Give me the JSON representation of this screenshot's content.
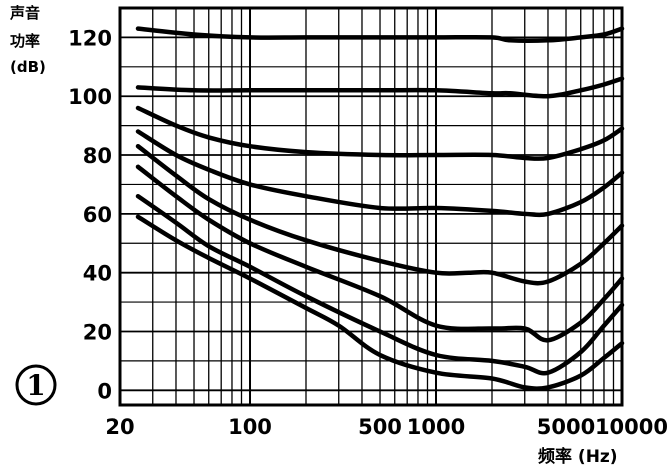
{
  "chart_data": {
    "type": "line",
    "ylabel": [
      "声音",
      "功率",
      "(dB)"
    ],
    "xlabel": "频率 (Hz)",
    "panel_marker": "1",
    "x_scale": "log",
    "xlim": [
      20,
      10000
    ],
    "ylim": [
      -5,
      130
    ],
    "x_ticks": [
      20,
      100,
      500,
      1000,
      5000,
      10000
    ],
    "x_tick_labels": [
      "20",
      "100",
      "500",
      "1000",
      "5000",
      "10000"
    ],
    "y_ticks": [
      0,
      20,
      40,
      60,
      80,
      100,
      120
    ],
    "y_tick_labels": [
      "0",
      "20",
      "40",
      "60",
      "80",
      "100",
      "120"
    ],
    "grid": true,
    "series": [
      {
        "x": [
          25,
          50,
          100,
          200,
          500,
          1000,
          2000,
          2500,
          4000,
          6000,
          8000,
          10000
        ],
        "y": [
          123,
          121,
          120,
          120,
          120,
          120,
          120,
          119,
          119,
          120,
          121,
          123
        ]
      },
      {
        "x": [
          25,
          50,
          100,
          200,
          500,
          1000,
          2000,
          2500,
          4000,
          6000,
          8000,
          10000
        ],
        "y": [
          103,
          102,
          102,
          102,
          102,
          102,
          101,
          101,
          100,
          102,
          104,
          106
        ]
      },
      {
        "x": [
          25,
          40,
          60,
          100,
          200,
          500,
          1000,
          2000,
          3000,
          4000,
          6000,
          8000,
          10000
        ],
        "y": [
          96,
          90,
          86,
          83,
          81,
          80,
          80,
          80,
          79,
          79,
          82,
          85,
          89
        ]
      },
      {
        "x": [
          25,
          40,
          60,
          100,
          200,
          500,
          1000,
          2000,
          3000,
          4000,
          6000,
          8000,
          10000
        ],
        "y": [
          88,
          80,
          75,
          70,
          66,
          62,
          62,
          61,
          60,
          60,
          64,
          69,
          74
        ]
      },
      {
        "x": [
          25,
          40,
          60,
          100,
          200,
          500,
          1000,
          1500,
          2000,
          3000,
          4000,
          6000,
          8000,
          10000
        ],
        "y": [
          83,
          73,
          65,
          58,
          51,
          44,
          40,
          40,
          40,
          37,
          37,
          43,
          50,
          56
        ]
      },
      {
        "x": [
          25,
          40,
          60,
          100,
          200,
          500,
          1000,
          2000,
          3000,
          4000,
          6000,
          8000,
          10000
        ],
        "y": [
          76,
          66,
          58,
          50,
          42,
          32,
          22,
          21,
          21,
          17,
          23,
          31,
          38
        ]
      },
      {
        "x": [
          25,
          40,
          60,
          100,
          200,
          500,
          1000,
          2000,
          3000,
          4000,
          6000,
          8000,
          10000
        ],
        "y": [
          66,
          57,
          49,
          42,
          32,
          20,
          12,
          10,
          8,
          6,
          13,
          22,
          29
        ]
      },
      {
        "x": [
          25,
          40,
          60,
          100,
          200,
          300,
          500,
          1000,
          2000,
          3000,
          4000,
          6000,
          8000,
          10000
        ],
        "y": [
          59,
          51,
          45,
          38,
          28,
          22,
          12,
          6,
          4,
          1,
          1,
          5,
          11,
          16
        ]
      }
    ],
    "colors": {
      "ink": "#000000",
      "background": "#ffffff"
    }
  }
}
